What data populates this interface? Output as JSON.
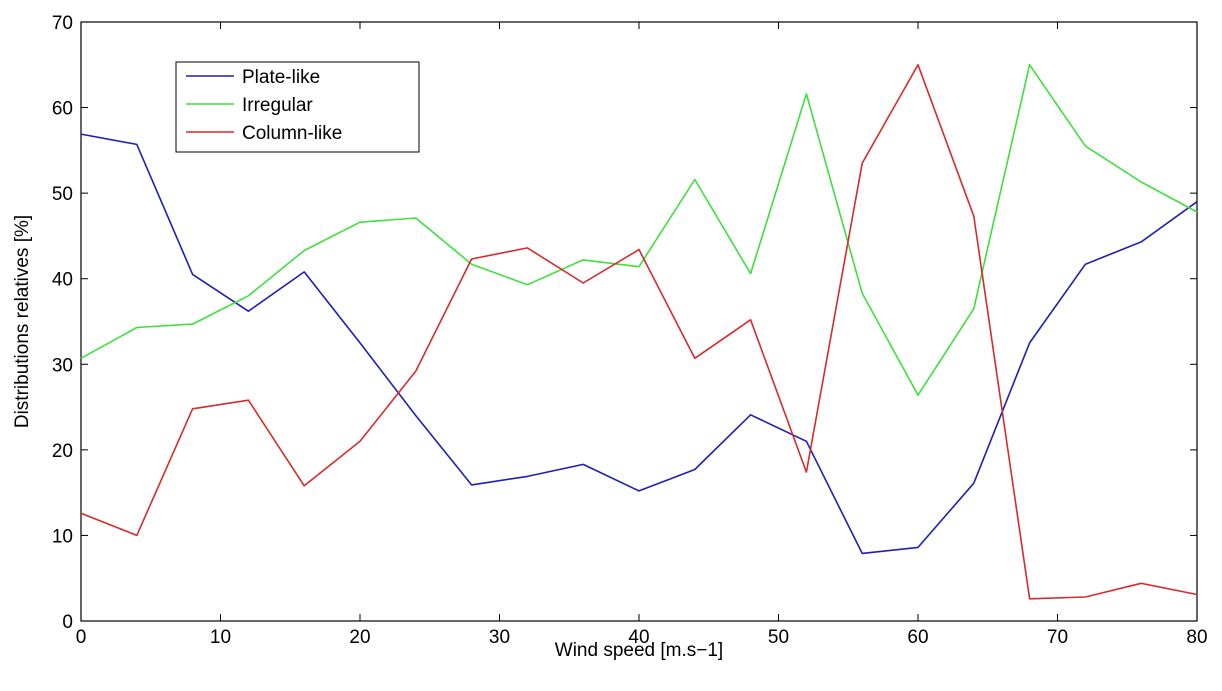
{
  "chart_data": {
    "type": "line",
    "title": "",
    "xlabel": "Wind speed [m.s−1]",
    "ylabel": "Distributions relatives [%]",
    "xlim": [
      0,
      80
    ],
    "ylim": [
      0,
      70
    ],
    "xticks": [
      0,
      10,
      20,
      30,
      40,
      50,
      60,
      70,
      80
    ],
    "yticks": [
      0,
      10,
      20,
      30,
      40,
      50,
      60,
      70
    ],
    "grid": false,
    "legend_position": "top-left",
    "x": [
      0,
      4,
      8,
      12,
      16,
      20,
      24,
      28,
      32,
      36,
      40,
      44,
      48,
      52,
      56,
      60,
      64,
      68,
      72,
      76,
      80
    ],
    "series": [
      {
        "name": "Plate-like",
        "color": "#1f1fb4",
        "values": [
          56.9,
          55.7,
          40.5,
          36.2,
          40.8,
          32.5,
          24.0,
          15.9,
          16.9,
          18.3,
          15.2,
          17.7,
          24.1,
          21.0,
          7.9,
          8.6,
          16.1,
          32.5,
          41.7,
          44.3,
          49.0
        ]
      },
      {
        "name": "Irregular",
        "color": "#3ee03e",
        "values": [
          30.7,
          34.3,
          34.7,
          38.0,
          43.3,
          46.6,
          47.1,
          41.7,
          39.3,
          42.2,
          41.4,
          51.6,
          40.6,
          61.6,
          38.3,
          26.4,
          36.5,
          65.0,
          55.5,
          51.3,
          47.8
        ]
      },
      {
        "name": "Column-like",
        "color": "#d42c2c",
        "values": [
          12.6,
          10.0,
          24.8,
          25.8,
          15.8,
          21.0,
          29.2,
          42.3,
          43.6,
          39.5,
          43.4,
          30.7,
          35.2,
          17.4,
          53.5,
          65.0,
          47.3,
          2.6,
          2.8,
          4.4,
          3.1
        ]
      }
    ]
  }
}
